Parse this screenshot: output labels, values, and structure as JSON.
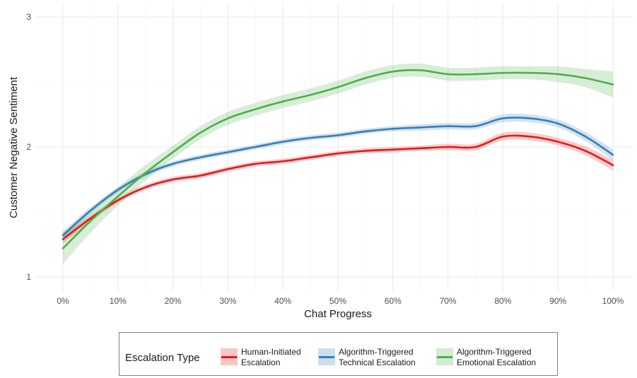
{
  "chart_data": {
    "type": "line",
    "title": "",
    "xlabel": "Chat Progress",
    "ylabel": "Customer Negative Sentiment",
    "xlim": [
      0,
      1
    ],
    "ylim": [
      1,
      3
    ],
    "x_ticks": [
      "0%",
      "10%",
      "20%",
      "30%",
      "40%",
      "50%",
      "60%",
      "70%",
      "80%",
      "90%",
      "100%"
    ],
    "y_ticks": [
      "1",
      "2",
      "3"
    ],
    "grid": true,
    "legend": {
      "title": "Escalation Type",
      "position": "bottom",
      "entries": [
        {
          "label_line1": "Human-Initiated",
          "label_line2": "Escalation",
          "color": "#E41A1C"
        },
        {
          "label_line1": "Algorithm-Triggered",
          "label_line2": "Technical Escalation",
          "color": "#377EB8"
        },
        {
          "label_line1": "Algorithm-Triggered",
          "label_line2": "Emotional Escalation",
          "color": "#4DAF4A"
        }
      ]
    },
    "x": [
      0,
      0.05,
      0.1,
      0.15,
      0.2,
      0.25,
      0.3,
      0.35,
      0.4,
      0.45,
      0.5,
      0.55,
      0.6,
      0.65,
      0.7,
      0.75,
      0.8,
      0.85,
      0.9,
      0.95,
      1.0
    ],
    "series": [
      {
        "name": "Human-Initiated Escalation",
        "color": "#E41A1C",
        "values": [
          1.29,
          1.45,
          1.59,
          1.69,
          1.75,
          1.78,
          1.83,
          1.87,
          1.89,
          1.92,
          1.95,
          1.97,
          1.98,
          1.99,
          2.0,
          2.0,
          2.08,
          2.08,
          2.04,
          1.97,
          1.86
        ],
        "ci_half_width": [
          0.03,
          0.025,
          0.02,
          0.02,
          0.02,
          0.02,
          0.02,
          0.02,
          0.02,
          0.02,
          0.02,
          0.02,
          0.02,
          0.02,
          0.025,
          0.025,
          0.03,
          0.03,
          0.03,
          0.035,
          0.04
        ]
      },
      {
        "name": "Algorithm-Triggered Technical Escalation",
        "color": "#377EB8",
        "values": [
          1.32,
          1.51,
          1.67,
          1.79,
          1.87,
          1.92,
          1.96,
          2.0,
          2.04,
          2.07,
          2.09,
          2.12,
          2.14,
          2.15,
          2.16,
          2.16,
          2.22,
          2.22,
          2.18,
          2.08,
          1.94
        ],
        "ci_half_width": [
          0.03,
          0.025,
          0.02,
          0.02,
          0.02,
          0.02,
          0.02,
          0.02,
          0.02,
          0.02,
          0.02,
          0.02,
          0.02,
          0.025,
          0.025,
          0.025,
          0.03,
          0.03,
          0.03,
          0.035,
          0.04
        ]
      },
      {
        "name": "Algorithm-Triggered Emotional Escalation",
        "color": "#4DAF4A",
        "values": [
          1.22,
          1.43,
          1.62,
          1.8,
          1.96,
          2.11,
          2.22,
          2.29,
          2.35,
          2.4,
          2.46,
          2.53,
          2.58,
          2.59,
          2.56,
          2.56,
          2.57,
          2.57,
          2.56,
          2.53,
          2.48
        ],
        "ci_half_width": [
          0.12,
          0.09,
          0.07,
          0.06,
          0.05,
          0.05,
          0.05,
          0.05,
          0.05,
          0.05,
          0.05,
          0.05,
          0.05,
          0.05,
          0.05,
          0.05,
          0.05,
          0.05,
          0.06,
          0.07,
          0.1
        ]
      }
    ]
  }
}
